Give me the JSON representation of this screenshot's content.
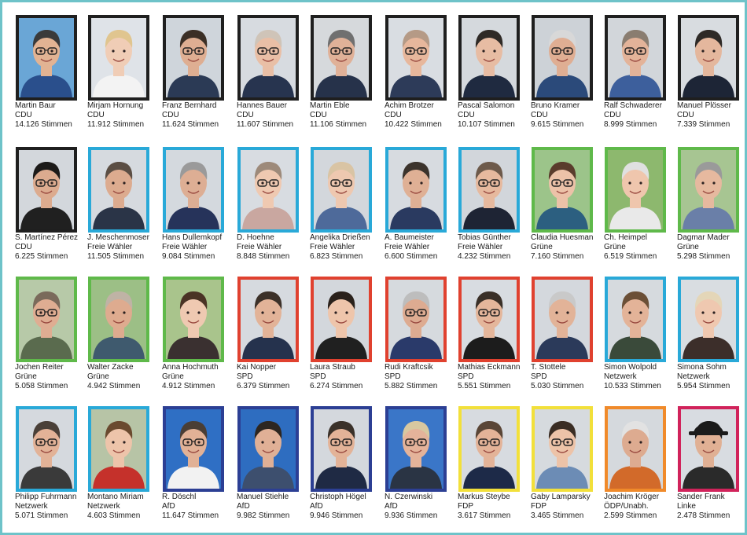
{
  "candidates": [
    {
      "name": "Martin Baur",
      "party": "CDU",
      "votes": "14.126 Stimmen",
      "frame_color": "#1f1f1f",
      "bg": "#6aa6d6",
      "hair": "#3a3a3a",
      "skin": "#e2b393",
      "shirt": "#2a4f8c",
      "glasses": true
    },
    {
      "name": "Mirjam Hornung",
      "party": "CDU",
      "votes": "11.912 Stimmen",
      "frame_color": "#1f1f1f",
      "bg": "#dfe3e8",
      "hair": "#e0c58f",
      "skin": "#f0cdb6",
      "shirt": "#f3f3f3",
      "glasses": false
    },
    {
      "name": "Franz Bernhard",
      "party": "CDU",
      "votes": "11.624 Stimmen",
      "frame_color": "#1f1f1f",
      "bg": "#cfd5db",
      "hair": "#3b2f26",
      "skin": "#deae92",
      "shirt": "#2b3a55",
      "glasses": true
    },
    {
      "name": "Hannes Bauer",
      "party": "CDU",
      "votes": "11.607 Stimmen",
      "frame_color": "#1f1f1f",
      "bg": "#d7dbe0",
      "hair": "#cfc4b8",
      "skin": "#e9bfa6",
      "shirt": "#27344f",
      "glasses": true
    },
    {
      "name": "Martin Eble",
      "party": "CDU",
      "votes": "11.106 Stimmen",
      "frame_color": "#1f1f1f",
      "bg": "#d6d9dc",
      "hair": "#707070",
      "skin": "#e0b198",
      "shirt": "#26324a",
      "glasses": true
    },
    {
      "name": "Achim Brotzer",
      "party": "CDU",
      "votes": "10.422 Stimmen",
      "frame_color": "#1f1f1f",
      "bg": "#d9dde2",
      "hair": "#b59a86",
      "skin": "#e7b79c",
      "shirt": "#2d3b59",
      "glasses": true
    },
    {
      "name": "Pascal Salomon",
      "party": "CDU",
      "votes": "10.107 Stimmen",
      "frame_color": "#1f1f1f",
      "bg": "#d5d9dd",
      "hair": "#2f2a26",
      "skin": "#e7bca3",
      "shirt": "#1f2a40",
      "glasses": false
    },
    {
      "name": "Bruno Kramer",
      "party": "CDU",
      "votes": "9.615 Stimmen",
      "frame_color": "#1f1f1f",
      "bg": "#cdd2d7",
      "hair": "#d8d8d8",
      "skin": "#dfae93",
      "shirt": "#2b4a7a",
      "glasses": true
    },
    {
      "name": "Ralf Schwaderer",
      "party": "CDU",
      "votes": "8.999 Stimmen",
      "frame_color": "#1f1f1f",
      "bg": "#d2d6da",
      "hair": "#8a7d70",
      "skin": "#e3b399",
      "shirt": "#3d5f9c",
      "glasses": true
    },
    {
      "name": "Manuel Plösser",
      "party": "CDU",
      "votes": "7.339 Stimmen",
      "frame_color": "#1f1f1f",
      "bg": "#d8dce0",
      "hair": "#2e2a27",
      "skin": "#e4b79d",
      "shirt": "#1d2536",
      "glasses": false
    },
    {
      "name": "S. Martínez Pérez",
      "party": "CDU",
      "votes": "6.225 Stimmen",
      "frame_color": "#1f1f1f",
      "bg": "#d3d7dc",
      "hair": "#1c1a19",
      "skin": "#dcab8f",
      "shirt": "#202020",
      "glasses": true
    },
    {
      "name": "J. Meschenmoser",
      "party": "Freie Wähler",
      "votes": "11.505 Stimmen",
      "frame_color": "#29a9d8",
      "bg": "#d6dadf",
      "hair": "#5b4e44",
      "skin": "#dcab8f",
      "shirt": "#2a3447",
      "glasses": false
    },
    {
      "name": "Hans Dullemkopf",
      "party": "Freie Wähler",
      "votes": "9.084 Stimmen",
      "frame_color": "#29a9d8",
      "bg": "#d4d9de",
      "hair": "#9a9a9a",
      "skin": "#ddae94",
      "shirt": "#26335a",
      "glasses": false
    },
    {
      "name": "D. Hoehne",
      "party": "Freie Wähler",
      "votes": "8.848 Stimmen",
      "frame_color": "#29a9d8",
      "bg": "#d8dce1",
      "hair": "#9d8a7a",
      "skin": "#efc9b1",
      "shirt": "#c9a7a0",
      "glasses": true
    },
    {
      "name": "Angelika Drießen",
      "party": "Freie Wähler",
      "votes": "6.823 Stimmen",
      "frame_color": "#29a9d8",
      "bg": "#d3d7dc",
      "hair": "#d9c4a4",
      "skin": "#eec8b0",
      "shirt": "#4e6a9a",
      "glasses": true
    },
    {
      "name": "A. Baumeister",
      "party": "Freie Wähler",
      "votes": "6.600 Stimmen",
      "frame_color": "#29a9d8",
      "bg": "#d7dbe0",
      "hair": "#3b332c",
      "skin": "#dfb095",
      "shirt": "#2a3a60",
      "glasses": false
    },
    {
      "name": "Tobias Günther",
      "party": "Freie Wähler",
      "votes": "4.232 Stimmen",
      "frame_color": "#29a9d8",
      "bg": "#d2d6db",
      "hair": "#6d5a4b",
      "skin": "#e6b99e",
      "shirt": "#1e2434",
      "glasses": true
    },
    {
      "name": "Claudia Huesman",
      "party": "Grüne",
      "votes": "7.160 Stimmen",
      "frame_color": "#5fb94a",
      "bg": "#9cc48a",
      "hair": "#5a3c2c",
      "skin": "#ecc2a8",
      "shirt": "#2c5f80",
      "glasses": true
    },
    {
      "name": "Ch. Heimpel",
      "party": "Grüne",
      "votes": "6.519 Stimmen",
      "frame_color": "#5fb94a",
      "bg": "#8db86e",
      "hair": "#e0e0e0",
      "skin": "#efc6ad",
      "shirt": "#e9e9e9",
      "glasses": false
    },
    {
      "name": "Dagmar Mader",
      "party": "Grüne",
      "votes": "5.298 Stimmen",
      "frame_color": "#5fb94a",
      "bg": "#a7c592",
      "hair": "#9a9a9a",
      "skin": "#e6b99f",
      "shirt": "#6a7fa8",
      "glasses": false
    },
    {
      "name": "Jochen Reiter",
      "party": "Grüne",
      "votes": "5.058 Stimmen",
      "frame_color": "#5fb94a",
      "bg": "#b7c9a8",
      "hair": "#7a6a5b",
      "skin": "#dfad92",
      "shirt": "#5a6b4e",
      "glasses": true
    },
    {
      "name": "Walter Zacke",
      "party": "Grüne",
      "votes": "4.942 Stimmen",
      "frame_color": "#5fb94a",
      "bg": "#9cbf86",
      "hair": "#bfb3a5",
      "skin": "#deab8f",
      "shirt": "#3f5a6e",
      "glasses": false
    },
    {
      "name": "Anna Hochmuth",
      "party": "Grüne",
      "votes": "4.912 Stimmen",
      "frame_color": "#5fb94a",
      "bg": "#a9c48c",
      "hair": "#4a3325",
      "skin": "#efc9b1",
      "shirt": "#3a3030",
      "glasses": false
    },
    {
      "name": "Kai Nopper",
      "party": "SPD",
      "votes": "6.379 Stimmen",
      "frame_color": "#e0412f",
      "bg": "#d6dadf",
      "hair": "#3c3129",
      "skin": "#e2b398",
      "shirt": "#25324d",
      "glasses": false
    },
    {
      "name": "Laura Straub",
      "party": "SPD",
      "votes": "6.274 Stimmen",
      "frame_color": "#e0412f",
      "bg": "#d3d7dc",
      "hair": "#2a211b",
      "skin": "#eec5ab",
      "shirt": "#202020",
      "glasses": false
    },
    {
      "name": "Rudi Kraftcsik",
      "party": "SPD",
      "votes": "5.882 Stimmen",
      "frame_color": "#e0412f",
      "bg": "#d6dade",
      "hair": "#bdbdbd",
      "skin": "#ddab91",
      "shirt": "#2a3a6a",
      "glasses": true
    },
    {
      "name": "Mathias Eckmann",
      "party": "SPD",
      "votes": "5.551 Stimmen",
      "frame_color": "#e0412f",
      "bg": "#d8dce1",
      "hair": "#3a3028",
      "skin": "#e4b69b",
      "shirt": "#1c1c1c",
      "glasses": true
    },
    {
      "name": "T. Stottele",
      "party": "SPD",
      "votes": "5.030 Stimmen",
      "frame_color": "#e0412f",
      "bg": "#d4d8dd",
      "hair": "#c9c9c9",
      "skin": "#e2b398",
      "shirt": "#2b3a5a",
      "glasses": false
    },
    {
      "name": "Simon Wolpold",
      "party": "Netzwerk",
      "votes": "10.533 Stimmen",
      "frame_color": "#29a9d8",
      "bg": "#d6dade",
      "hair": "#6b4f36",
      "skin": "#e3b398",
      "shirt": "#3a4a3a",
      "glasses": false
    },
    {
      "name": "Simona Sohm",
      "party": "Netzwerk",
      "votes": "5.954 Stimmen",
      "frame_color": "#29a9d8",
      "bg": "#d9dde1",
      "hair": "#e4d6b8",
      "skin": "#efc8b0",
      "shirt": "#3c2e2a",
      "glasses": false
    },
    {
      "name": "Philipp Fuhrmann",
      "party": "Netzwerk",
      "votes": "5.071 Stimmen",
      "frame_color": "#29a9d8",
      "bg": "#d5d9de",
      "hair": "#4a4038",
      "skin": "#e2b297",
      "shirt": "#3a3a3a",
      "glasses": true
    },
    {
      "name": "Montano Miriam",
      "party": "Netzwerk",
      "votes": "4.603 Stimmen",
      "frame_color": "#29a9d8",
      "bg": "#b7c4a6",
      "hair": "#6a4a2f",
      "skin": "#edc4aa",
      "shirt": "#c5312b",
      "glasses": false
    },
    {
      "name": "R. Döschl",
      "party": "AfD",
      "votes": "11.647 Stimmen",
      "frame_color": "#2c3f94",
      "bg": "#2f6fc4",
      "hair": "#4a3e35",
      "skin": "#e1b196",
      "shirt": "#f2f2f2",
      "glasses": true
    },
    {
      "name": "Manuel Stiehle",
      "party": "AfD",
      "votes": "9.982 Stimmen",
      "frame_color": "#2c3f94",
      "bg": "#2e6dc0",
      "hair": "#2d2620",
      "skin": "#e0b096",
      "shirt": "#3d4f6e",
      "glasses": false
    },
    {
      "name": "Christoph Högel",
      "party": "AfD",
      "votes": "9.946 Stimmen",
      "frame_color": "#2c3f94",
      "bg": "#d4d8dd",
      "hair": "#3a3129",
      "skin": "#e3b398",
      "shirt": "#1f2a44",
      "glasses": true
    },
    {
      "name": "N. Czerwinski",
      "party": "AfD",
      "votes": "9.936 Stimmen",
      "frame_color": "#2c3f94",
      "bg": "#3a76c8",
      "hair": "#d8c8a0",
      "skin": "#e4b39a",
      "shirt": "#2a3444",
      "glasses": true
    },
    {
      "name": "Markus Steybe",
      "party": "FDP",
      "votes": "3.617 Stimmen",
      "frame_color": "#f2e03a",
      "bg": "#d7dbe0",
      "hair": "#5a4637",
      "skin": "#e3b398",
      "shirt": "#1d2a48",
      "glasses": true
    },
    {
      "name": "Gaby Lamparsky",
      "party": "FDP",
      "votes": "3.465 Stimmen",
      "frame_color": "#f2e03a",
      "bg": "#d6dade",
      "hair": "#3a2d24",
      "skin": "#edc3a8",
      "shirt": "#6c8cb5",
      "glasses": true
    },
    {
      "name": "Joachim Kröger",
      "party": "ÖDP/Unabh.",
      "votes": "2.599 Stimmen",
      "frame_color": "#f08a2a",
      "bg": "#d5d9dd",
      "hair": "#e2e2e2",
      "skin": "#ddab90",
      "shirt": "#d26a2a",
      "glasses": false
    },
    {
      "name": "Sander Frank",
      "party": "Linke",
      "votes": "2.478 Stimmen",
      "frame_color": "#d1235b",
      "bg": "#d8dce1",
      "hair": "#1b1b1b",
      "skin": "#e0b094",
      "shirt": "#2a2a2a",
      "glasses": false,
      "hat": true
    }
  ]
}
